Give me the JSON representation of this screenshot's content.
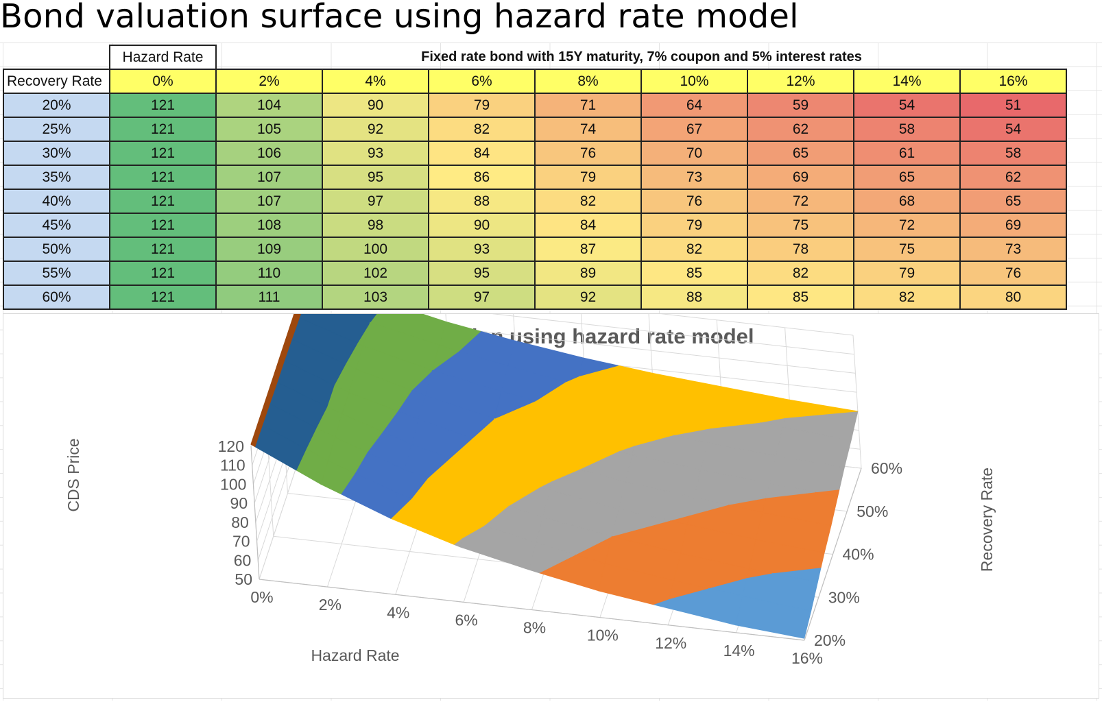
{
  "title": "Bond valuation surface using hazard rate model",
  "table": {
    "hazard_header": "Hazard Rate",
    "bond_header": "Fixed rate bond with 15Y maturity, 7% coupon and 5% interest rates",
    "corner": "Recovery Rate",
    "hazard_rates": [
      "0%",
      "2%",
      "4%",
      "6%",
      "8%",
      "10%",
      "12%",
      "14%",
      "16%"
    ],
    "recovery_rates": [
      "20%",
      "25%",
      "30%",
      "35%",
      "40%",
      "45%",
      "50%",
      "55%",
      "60%"
    ],
    "values": [
      [
        121,
        104,
        90,
        79,
        71,
        64,
        59,
        54,
        51
      ],
      [
        121,
        105,
        92,
        82,
        74,
        67,
        62,
        58,
        54
      ],
      [
        121,
        106,
        93,
        84,
        76,
        70,
        65,
        61,
        58
      ],
      [
        121,
        107,
        95,
        86,
        79,
        73,
        69,
        65,
        62
      ],
      [
        121,
        107,
        97,
        88,
        82,
        76,
        72,
        68,
        65
      ],
      [
        121,
        108,
        98,
        90,
        84,
        79,
        75,
        72,
        69
      ],
      [
        121,
        109,
        100,
        93,
        87,
        82,
        78,
        75,
        73
      ],
      [
        121,
        110,
        102,
        95,
        89,
        85,
        82,
        79,
        76
      ],
      [
        121,
        111,
        103,
        97,
        92,
        88,
        85,
        82,
        80
      ]
    ],
    "color_scale": {
      "low": "#e8696b",
      "mid": "#ffeb84",
      "high": "#63be7b"
    }
  },
  "chart_data": {
    "type": "surface",
    "title": "Bond valuation using hazard rate model",
    "xlabel": "Hazard Rate",
    "ylabel": "Recovery Rate",
    "zlabel": "CDS Price",
    "x_ticks": [
      "0%",
      "2%",
      "4%",
      "6%",
      "8%",
      "10%",
      "12%",
      "14%",
      "16%"
    ],
    "y_ticks": [
      "20%",
      "30%",
      "40%",
      "50%",
      "60%"
    ],
    "z_ticks": [
      "50",
      "60",
      "70",
      "80",
      "90",
      "100",
      "110",
      "120"
    ],
    "zlim": [
      50,
      120
    ],
    "x": [
      0,
      2,
      4,
      6,
      8,
      10,
      12,
      14,
      16
    ],
    "y": [
      20,
      25,
      30,
      35,
      40,
      45,
      50,
      55,
      60
    ],
    "band_edges": [
      50,
      60,
      70,
      80,
      90,
      100,
      110,
      120,
      130
    ],
    "band_colors": [
      "#5b9bd5",
      "#ed7d31",
      "#a5a5a5",
      "#ffc000",
      "#4472c4",
      "#70ad47",
      "#255e91",
      "#9e480e"
    ]
  }
}
